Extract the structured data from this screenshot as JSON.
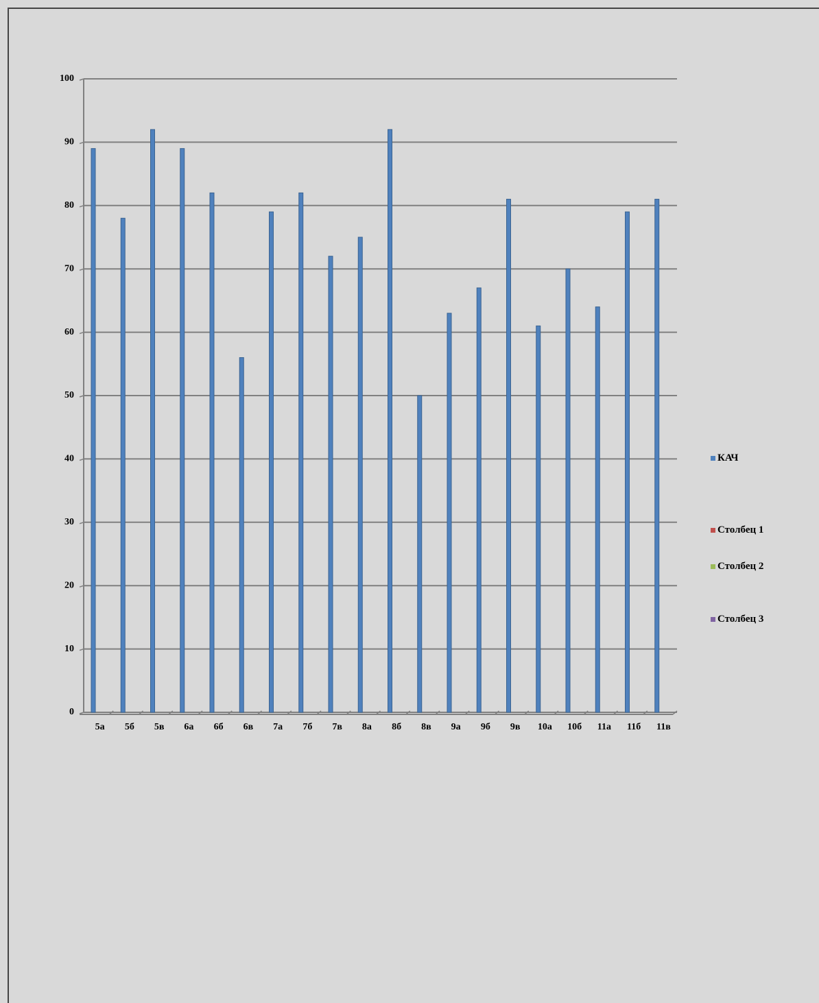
{
  "chart_data": {
    "type": "bar",
    "categories": [
      "5а",
      "5б",
      "5в",
      "6а",
      "6б",
      "6в",
      "7а",
      "7б",
      "7в",
      "8а",
      "8б",
      "8в",
      "9а",
      "9б",
      "9в",
      "10а",
      "10б",
      "11а",
      "11б",
      "11в"
    ],
    "series": [
      {
        "name": "КАЧ",
        "color": "#4f81bd",
        "values": [
          89,
          78,
          92,
          89,
          82,
          56,
          79,
          82,
          72,
          75,
          92,
          50,
          63,
          67,
          81,
          61,
          70,
          64,
          79,
          81
        ]
      },
      {
        "name": "Столбец 1",
        "color": "#c0504d",
        "values": [
          null,
          null,
          null,
          null,
          null,
          null,
          null,
          null,
          null,
          null,
          null,
          null,
          null,
          null,
          null,
          null,
          null,
          null,
          null,
          null
        ]
      },
      {
        "name": "Столбец 2",
        "color": "#9bbb59",
        "values": [
          null,
          null,
          null,
          null,
          null,
          null,
          null,
          null,
          null,
          null,
          null,
          null,
          null,
          null,
          null,
          null,
          null,
          null,
          null,
          null
        ]
      },
      {
        "name": "Столбец 3",
        "color": "#8064a2",
        "values": [
          null,
          null,
          null,
          null,
          null,
          null,
          null,
          null,
          null,
          null,
          null,
          null,
          null,
          null,
          null,
          null,
          null,
          null,
          null,
          null
        ]
      }
    ],
    "ylim": [
      0,
      100
    ],
    "yticks": [
      0,
      10,
      20,
      30,
      40,
      50,
      60,
      70,
      80,
      90,
      100
    ],
    "grid": true,
    "legend": "right"
  }
}
